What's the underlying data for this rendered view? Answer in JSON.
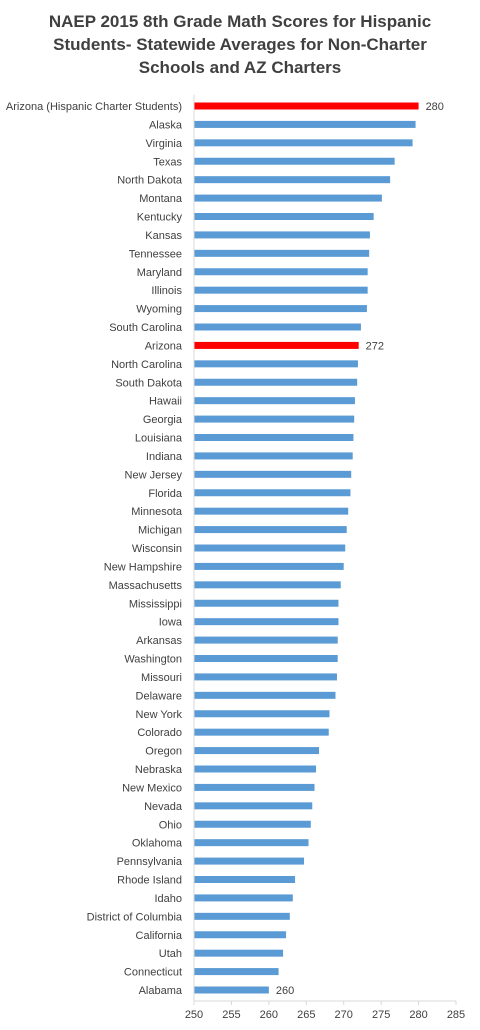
{
  "chart_data": {
    "type": "bar",
    "orientation": "horizontal",
    "title": "NAEP 2015 8th Grade Math Scores for Hispanic\nStudents- Statewide Averages for Non-Charter\nSchools and AZ Charters",
    "xlabel": "",
    "ylabel": "",
    "xlim": [
      250,
      285
    ],
    "x_ticks": [
      "250",
      "255",
      "260",
      "265",
      "270",
      "275",
      "280",
      "285"
    ],
    "grid": false,
    "legend": "none",
    "colors": {
      "default": "#5b9bd5",
      "highlight": "#ff0000"
    },
    "categories": [
      "Arizona (Hispanic Charter Students)",
      "Alaska",
      "Virginia",
      "Texas",
      "North Dakota",
      "Montana",
      "Kentucky",
      "Kansas",
      "Tennessee",
      "Maryland",
      "Illinois",
      "Wyoming",
      "South Carolina",
      "Arizona",
      "North Carolina",
      "South Dakota",
      "Hawaii",
      "Georgia",
      "Louisiana",
      "Indiana",
      "New Jersey",
      "Florida",
      "Minnesota",
      "Michigan",
      "Wisconsin",
      "New Hampshire",
      "Massachusetts",
      "Mississippi",
      "Iowa",
      "Arkansas",
      "Washington",
      "Missouri",
      "Delaware",
      "New York",
      "Colorado",
      "Oregon",
      "Nebraska",
      "New Mexico",
      "Nevada",
      "Ohio",
      "Oklahoma",
      "Pennsylvania",
      "Rhode Island",
      "Idaho",
      "District of Columbia",
      "California",
      "Utah",
      "Connecticut",
      "Alabama"
    ],
    "values": [
      280,
      279.6,
      279.2,
      276.8,
      276.2,
      275.1,
      274.0,
      273.5,
      273.4,
      273.2,
      273.2,
      273.1,
      272.3,
      272,
      271.9,
      271.8,
      271.5,
      271.4,
      271.3,
      271.2,
      271.0,
      270.9,
      270.6,
      270.4,
      270.2,
      270.0,
      269.6,
      269.3,
      269.3,
      269.2,
      269.2,
      269.1,
      268.9,
      268.1,
      268.0,
      266.7,
      266.3,
      266.1,
      265.8,
      265.6,
      265.3,
      264.7,
      263.5,
      263.2,
      262.8,
      262.3,
      261.9,
      261.3,
      260
    ],
    "highlight_indices": [
      0,
      13
    ],
    "data_labels": [
      {
        "index": 0,
        "text": "280"
      },
      {
        "index": 13,
        "text": "272"
      },
      {
        "index": 48,
        "text": "260"
      }
    ]
  }
}
